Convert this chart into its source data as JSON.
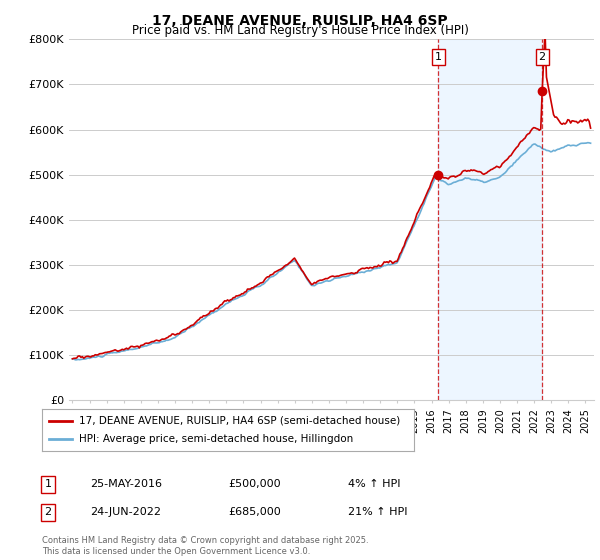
{
  "title": "17, DEANE AVENUE, RUISLIP, HA4 6SP",
  "subtitle": "Price paid vs. HM Land Registry's House Price Index (HPI)",
  "ylabel_ticks": [
    "£0",
    "£100K",
    "£200K",
    "£300K",
    "£400K",
    "£500K",
    "£600K",
    "£700K",
    "£800K"
  ],
  "ylim": [
    0,
    800000
  ],
  "legend_line1": "17, DEANE AVENUE, RUISLIP, HA4 6SP (semi-detached house)",
  "legend_line2": "HPI: Average price, semi-detached house, Hillingdon",
  "sale1_date": "25-MAY-2016",
  "sale1_price": "£500,000",
  "sale1_hpi": "4% ↑ HPI",
  "sale1_year": 2016.4,
  "sale1_value": 500000,
  "sale2_date": "24-JUN-2022",
  "sale2_price": "£685,000",
  "sale2_hpi": "21% ↑ HPI",
  "sale2_year": 2022.47,
  "sale2_value": 685000,
  "footer": "Contains HM Land Registry data © Crown copyright and database right 2025.\nThis data is licensed under the Open Government Licence v3.0.",
  "color_sold": "#cc0000",
  "color_hpi": "#6baed6",
  "color_shade": "#ddeeff",
  "color_grid": "#cccccc",
  "background_color": "#ffffff"
}
